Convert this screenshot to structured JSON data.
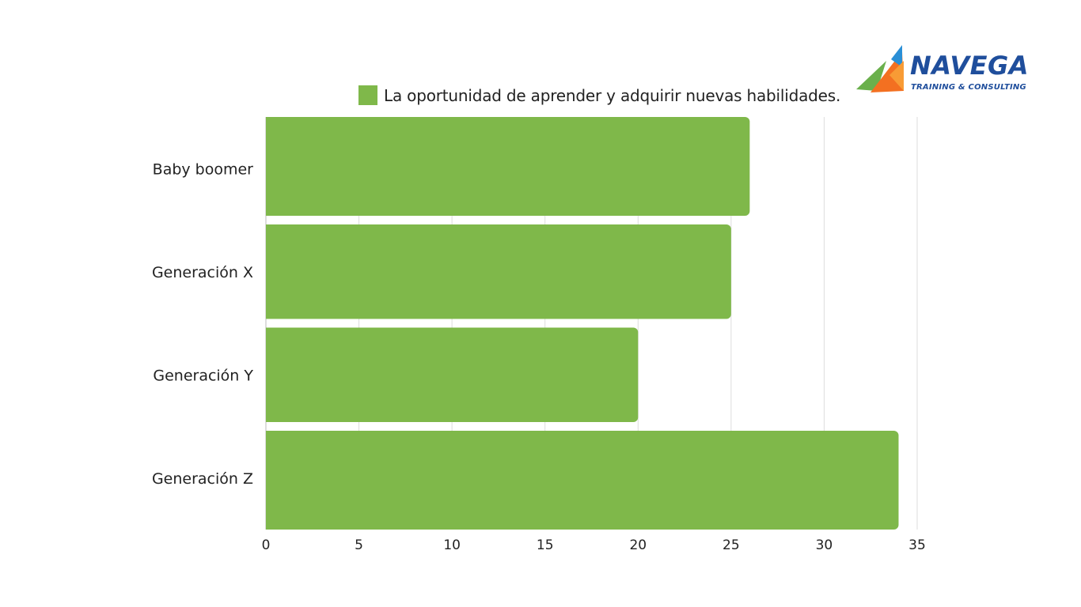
{
  "logo": {
    "name": "NAVEGA",
    "tagline": "TRAINING & CONSULTING"
  },
  "chart_data": {
    "type": "bar",
    "orientation": "horizontal",
    "categories": [
      "Baby boomer",
      "Generación X",
      "Generación Y",
      "Generación Z"
    ],
    "series": [
      {
        "name": "La oportunidad de aprender y adquirir nuevas habilidades.",
        "values": [
          26,
          25,
          20,
          34
        ],
        "color": "#7fb84a"
      }
    ],
    "xlim": [
      0,
      35
    ],
    "xticks": [
      0,
      5,
      10,
      15,
      20,
      25,
      30,
      35
    ],
    "grid": true,
    "legend": "top-center",
    "colors": {
      "bar": "#7fb84a",
      "grid": "#dddddd",
      "logo_blue": "#1f4e9c",
      "logo_orange": "#f37021"
    }
  }
}
